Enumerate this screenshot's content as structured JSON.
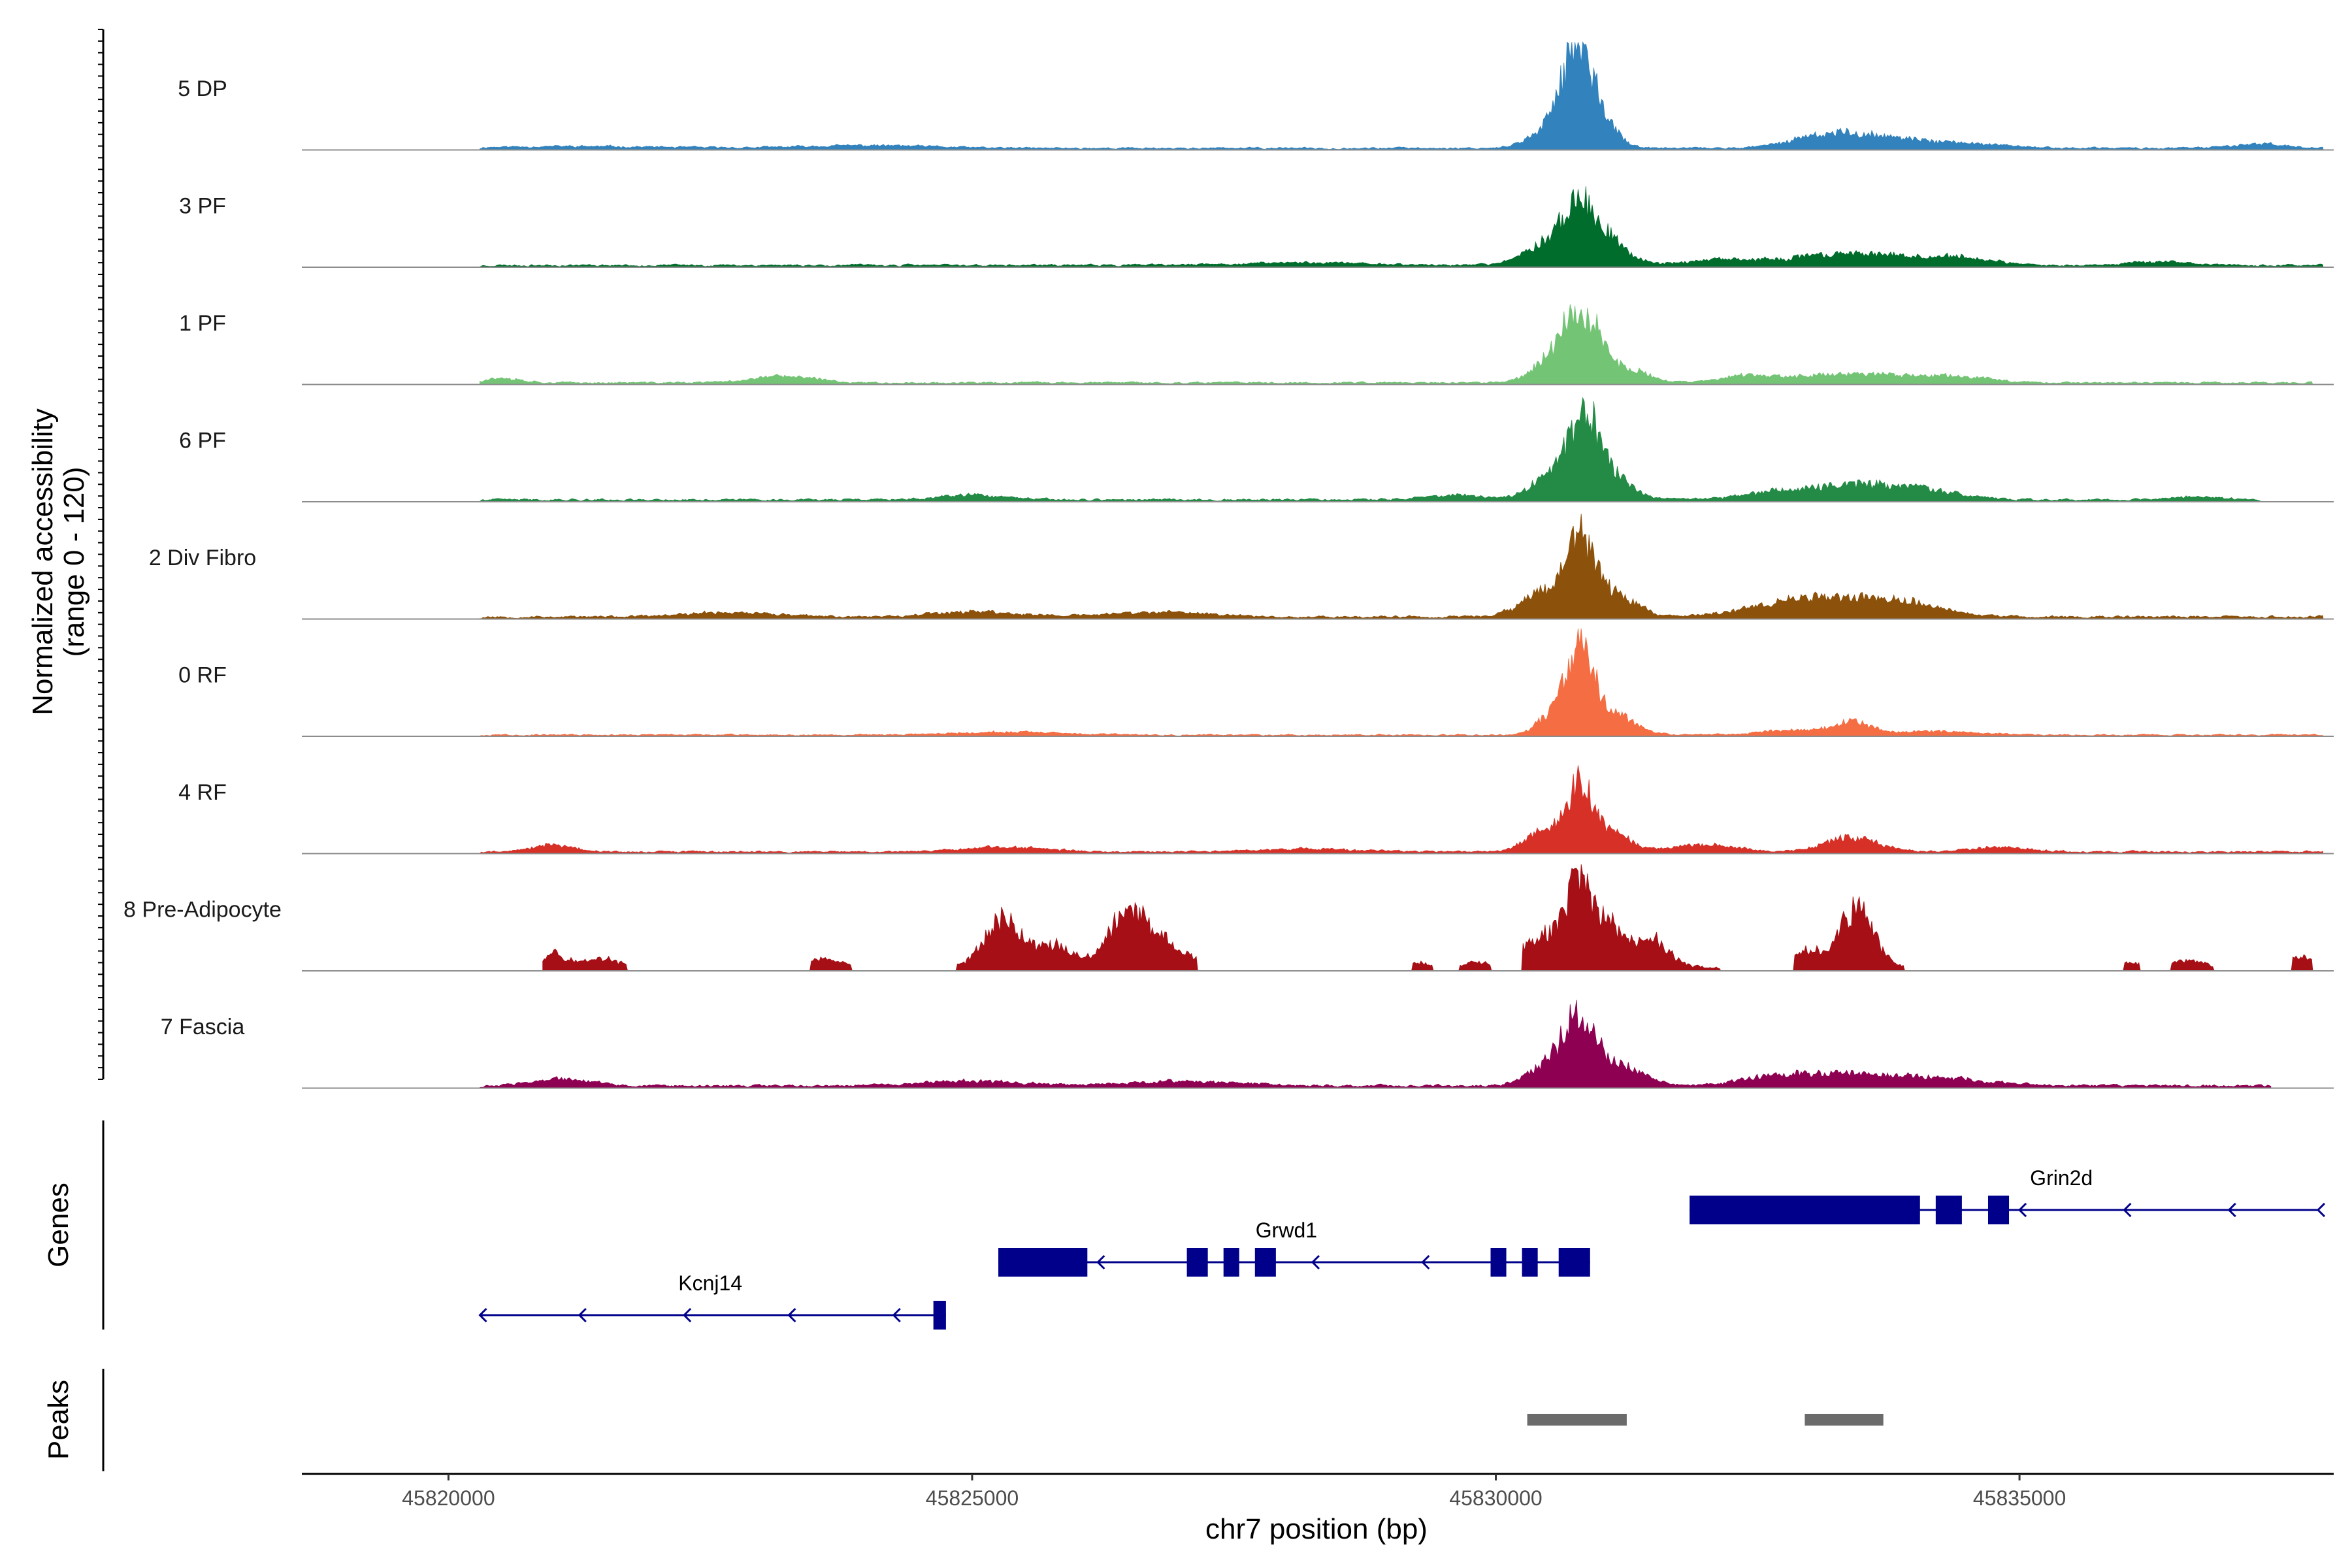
{
  "chart_data": {
    "type": "area",
    "title": "",
    "chromosome": "chr7",
    "xlabel": "chr7 position (bp)",
    "ylabel": "Normalized accessibility",
    "ylabel_range": "(range 0 - 120)",
    "ylim": [
      0,
      120
    ],
    "xlim": [
      45818600,
      45838000
    ],
    "x_ticks": [
      45820000,
      45825000,
      45830000,
      45835000
    ],
    "x_tick_labels": [
      "45820000",
      "45825000",
      "45830000",
      "45835000"
    ],
    "series": [
      {
        "name": "5 DP",
        "color": "#3182BD",
        "peaks": [
          [
            45830800,
            105,
            120
          ],
          [
            45830650,
            32,
            160
          ],
          [
            45831050,
            25,
            130
          ],
          [
            45830450,
            10,
            200
          ],
          [
            45833350,
            14,
            300
          ],
          [
            45833900,
            7,
            350
          ],
          [
            45832900,
            6,
            250
          ],
          [
            45834500,
            4,
            400
          ],
          [
            45837300,
            5,
            250
          ],
          [
            45824000,
            3,
            600
          ],
          [
            45821200,
            2,
            800
          ]
        ],
        "noise": 2.0,
        "seed": 11,
        "start": 45820300,
        "end": 45837900,
        "gaps": []
      },
      {
        "name": "3 PF",
        "color": "#006D2C",
        "peaks": [
          [
            45830800,
            58,
            160
          ],
          [
            45830500,
            24,
            220
          ],
          [
            45831100,
            22,
            180
          ],
          [
            45833400,
            14,
            450
          ],
          [
            45834400,
            9,
            300
          ],
          [
            45832200,
            6,
            400
          ],
          [
            45836300,
            4,
            300
          ],
          [
            45828200,
            3,
            600
          ]
        ],
        "noise": 2.2,
        "seed": 23,
        "start": 45820300,
        "end": 45837900,
        "gaps": []
      },
      {
        "name": "1 PF",
        "color": "#74C476",
        "peaks": [
          [
            45830750,
            62,
            140
          ],
          [
            45830950,
            40,
            140
          ],
          [
            45830500,
            20,
            180
          ],
          [
            45831300,
            14,
            180
          ],
          [
            45833400,
            10,
            500
          ],
          [
            45832400,
            7,
            250
          ],
          [
            45834400,
            6,
            350
          ],
          [
            45823200,
            7,
            300
          ],
          [
            45820500,
            5,
            200
          ]
        ],
        "noise": 2.0,
        "seed": 37,
        "start": 45820300,
        "end": 45837800,
        "gaps": []
      },
      {
        "name": "6 PF",
        "color": "#238B45",
        "peaks": [
          [
            45830850,
            78,
            140
          ],
          [
            45830550,
            28,
            200
          ],
          [
            45831100,
            24,
            200
          ],
          [
            45833400,
            16,
            450
          ],
          [
            45834100,
            8,
            350
          ],
          [
            45825000,
            5,
            300
          ],
          [
            45829600,
            5,
            300
          ],
          [
            45832600,
            6,
            300
          ],
          [
            45836700,
            4,
            200
          ]
        ],
        "noise": 2.3,
        "seed": 41,
        "start": 45820300,
        "end": 45837300,
        "gaps": []
      },
      {
        "name": "2 Div Fibro",
        "color": "#8C510A",
        "peaks": [
          [
            45830800,
            78,
            150
          ],
          [
            45830450,
            24,
            220
          ],
          [
            45831150,
            22,
            200
          ],
          [
            45833400,
            18,
            500
          ],
          [
            45832700,
            10,
            400
          ],
          [
            45834000,
            8,
            300
          ],
          [
            45825000,
            6,
            400
          ],
          [
            45826800,
            5,
            500
          ],
          [
            45822700,
            5,
            400
          ]
        ],
        "noise": 2.5,
        "seed": 53,
        "start": 45820300,
        "end": 45837900,
        "gaps": []
      },
      {
        "name": "0 RF",
        "color": "#F46D43",
        "peaks": [
          [
            45830800,
            92,
            120
          ],
          [
            45830550,
            22,
            150
          ],
          [
            45831100,
            26,
            200
          ],
          [
            45833400,
            14,
            180
          ],
          [
            45832800,
            5,
            300
          ],
          [
            45834200,
            4,
            400
          ],
          [
            45825300,
            3,
            500
          ]
        ],
        "noise": 1.6,
        "seed": 67,
        "start": 45820300,
        "end": 45837900,
        "gaps": []
      },
      {
        "name": "4 RF",
        "color": "#D73027",
        "peaks": [
          [
            45830800,
            72,
            120
          ],
          [
            45830450,
            24,
            160
          ],
          [
            45831100,
            20,
            180
          ],
          [
            45833400,
            16,
            250
          ],
          [
            45832000,
            8,
            300
          ],
          [
            45834800,
            5,
            300
          ],
          [
            45821000,
            8,
            200
          ],
          [
            45825300,
            5,
            400
          ],
          [
            45828200,
            3,
            500
          ]
        ],
        "noise": 2.0,
        "seed": 79,
        "start": 45820300,
        "end": 45837900,
        "gaps": []
      },
      {
        "name": "8 Pre-Adipocyte",
        "color": "#A50F15",
        "peaks": [
          [
            45830800,
            88,
            120
          ],
          [
            45831100,
            44,
            150
          ],
          [
            45830450,
            36,
            180
          ],
          [
            45831500,
            30,
            150
          ],
          [
            45833450,
            64,
            160
          ],
          [
            45833000,
            18,
            150
          ],
          [
            45825300,
            54,
            180
          ],
          [
            45825800,
            24,
            160
          ],
          [
            45826500,
            58,
            200
          ],
          [
            45826900,
            20,
            200
          ],
          [
            45821000,
            18,
            120
          ],
          [
            45821450,
            10,
            150
          ],
          [
            45823600,
            9,
            120
          ],
          [
            45837700,
            12,
            100
          ],
          [
            45836600,
            7,
            150
          ],
          [
            45836000,
            7,
            150
          ],
          [
            45829300,
            5,
            100
          ],
          [
            45829800,
            5,
            100
          ]
        ],
        "noise": 4.0,
        "seed": 97,
        "start": 45820900,
        "end": 45837800,
        "gaps": [
          [
            45821700,
            45823450
          ],
          [
            45823850,
            45824850
          ],
          [
            45827150,
            45829200
          ],
          [
            45829400,
            45829650
          ],
          [
            45829950,
            45830250
          ],
          [
            45832150,
            45832850
          ],
          [
            45833900,
            45836000
          ],
          [
            45836150,
            45836450
          ],
          [
            45836850,
            45837600
          ]
        ]
      },
      {
        "name": "7 Fascia",
        "color": "#8E0152",
        "peaks": [
          [
            45830800,
            70,
            150
          ],
          [
            45830500,
            22,
            200
          ],
          [
            45831200,
            22,
            220
          ],
          [
            45833400,
            14,
            500
          ],
          [
            45832600,
            8,
            300
          ],
          [
            45834400,
            6,
            400
          ],
          [
            45821100,
            8,
            250
          ],
          [
            45825000,
            5,
            500
          ],
          [
            45827000,
            5,
            500
          ]
        ],
        "noise": 2.6,
        "seed": 103,
        "start": 45820300,
        "end": 45837400,
        "gaps": []
      }
    ],
    "genes": [
      {
        "name": "Kcnj14",
        "strand": "-",
        "start": 45820300,
        "end": 45824750,
        "exons": [
          [
            45824630,
            45824750
          ]
        ],
        "row": 2,
        "arrows": [
          45820300,
          45821250,
          45822250,
          45823250,
          45824250
        ],
        "label_x": 45822500
      },
      {
        "name": "Grwd1",
        "strand": "-",
        "start": 45825250,
        "end": 45830900,
        "exons": [
          [
            45825250,
            45826100
          ],
          [
            45827050,
            45827250
          ],
          [
            45827400,
            45827550
          ],
          [
            45827700,
            45827900
          ],
          [
            45829950,
            45830100
          ],
          [
            45830250,
            45830400
          ],
          [
            45830600,
            45830900
          ]
        ],
        "row": 1,
        "arrows": [
          45826200,
          45828250,
          45829300
        ],
        "label_x": 45828000
      },
      {
        "name": "Grin2d",
        "strand": "-",
        "start": 45831850,
        "end": 45837850,
        "exons": [
          [
            45831850,
            45834050
          ],
          [
            45834200,
            45834450
          ],
          [
            45834700,
            45834900
          ]
        ],
        "row": 0,
        "arrows": [
          45835000,
          45836000,
          45837000,
          45837850
        ],
        "label_x": 45835400
      }
    ],
    "peak_regions": [
      [
        45830300,
        45831250
      ],
      [
        45832950,
        45833700
      ]
    ],
    "side_labels": {
      "genes": "Genes",
      "peaks": "Peaks"
    }
  }
}
